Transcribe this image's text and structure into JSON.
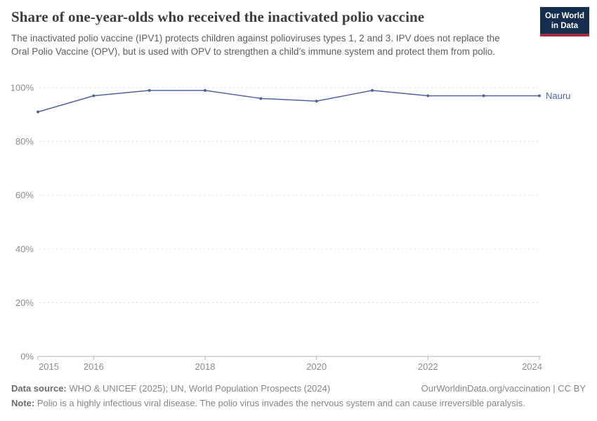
{
  "header": {
    "title": "Share of one-year-olds who received the inactivated polio vaccine",
    "subtitle": "The inactivated polio vaccine (IPV1) protects children against polioviruses types 1, 2 and 3. IPV does not replace the Oral Polio Vaccine (OPV), but is used with OPV to strengthen a child’s immune system and protect them from polio."
  },
  "logo": {
    "line1": "Our World",
    "line2": "in Data",
    "bg_color": "#152d4e",
    "accent_color": "#a52c43"
  },
  "chart_data": {
    "type": "line",
    "title": "Share of one-year-olds who received the inactivated polio vaccine",
    "x": [
      2015,
      2016,
      2017,
      2018,
      2019,
      2020,
      2021,
      2022,
      2023,
      2024
    ],
    "series": [
      {
        "name": "Nauru",
        "values": [
          91,
          97,
          99,
          99,
          96,
          95,
          99,
          97,
          97,
          97
        ],
        "color": "#4d66a2"
      }
    ],
    "unit": "%",
    "xlabel": "",
    "ylabel": "",
    "ylim": [
      0,
      100
    ],
    "yticks": [
      0,
      20,
      40,
      60,
      80,
      100
    ],
    "ytick_suffix": "%",
    "xticks": [
      2015,
      2016,
      2018,
      2020,
      2022,
      2024
    ],
    "grid": "dashed horizontal",
    "legend_position": "end-of-line label"
  },
  "footer": {
    "datasource_label": "Data source:",
    "datasource_text": " WHO & UNICEF (2025); UN, World Population Prospects (2024)",
    "link_text": "OurWorldinData.org/vaccination | CC BY",
    "note_label": "Note:",
    "note_text": " Polio is a highly infectious viral disease. The polio virus invades the nervous system and can cause irreversible paralysis."
  },
  "colors": {
    "grid": "#dadada",
    "axis": "#b3b3b3",
    "axis_text": "#8c8c8c"
  }
}
